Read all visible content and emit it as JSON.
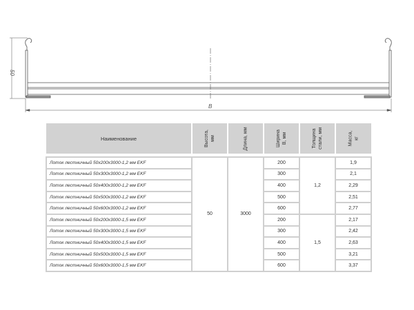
{
  "drawing": {
    "height_label": "50",
    "width_label": "B"
  },
  "table": {
    "headers": [
      "Наименование",
      "Высота,\nмм",
      "Длина, мм",
      "Ширина\nB, мм",
      "Толщина\nстали, мм",
      "Масса,\nкг"
    ],
    "height": "50",
    "length": "3000",
    "thickness_groups": [
      "1,2",
      "1,5"
    ],
    "rows": [
      {
        "name": "Лоток лестничный 50х200х3000-1,2 мм EKF",
        "width": "200",
        "mass": "1,9"
      },
      {
        "name": "Лоток лестничный 50х300х3000-1,2 мм EKF",
        "width": "300",
        "mass": "2,1"
      },
      {
        "name": "Лоток лестничный 50х400х3000-1,2 мм EKF",
        "width": "400",
        "mass": "2,29"
      },
      {
        "name": "Лоток лестничный 50х500х3000-1,2 мм EKF",
        "width": "500",
        "mass": "2,51"
      },
      {
        "name": "Лоток лестничный 50х600х3000-1,2 мм EKF",
        "width": "600",
        "mass": "2,77"
      },
      {
        "name": "Лоток лестничный 50х200х3000-1,5 мм EKF",
        "width": "200",
        "mass": "2,17"
      },
      {
        "name": "Лоток лестничный 50х300х3000-1,5 мм EKF",
        "width": "300",
        "mass": "2,42"
      },
      {
        "name": "Лоток лестничный 50х400х3000-1,5 мм EKF",
        "width": "400",
        "mass": "2,63"
      },
      {
        "name": "Лоток лестничный 50х500х3000-1,5 мм EKF",
        "width": "500",
        "mass": "3,21"
      },
      {
        "name": "Лоток лестничный 50х600х3000-1,5 мм EKF",
        "width": "600",
        "mass": "3,37"
      }
    ]
  }
}
